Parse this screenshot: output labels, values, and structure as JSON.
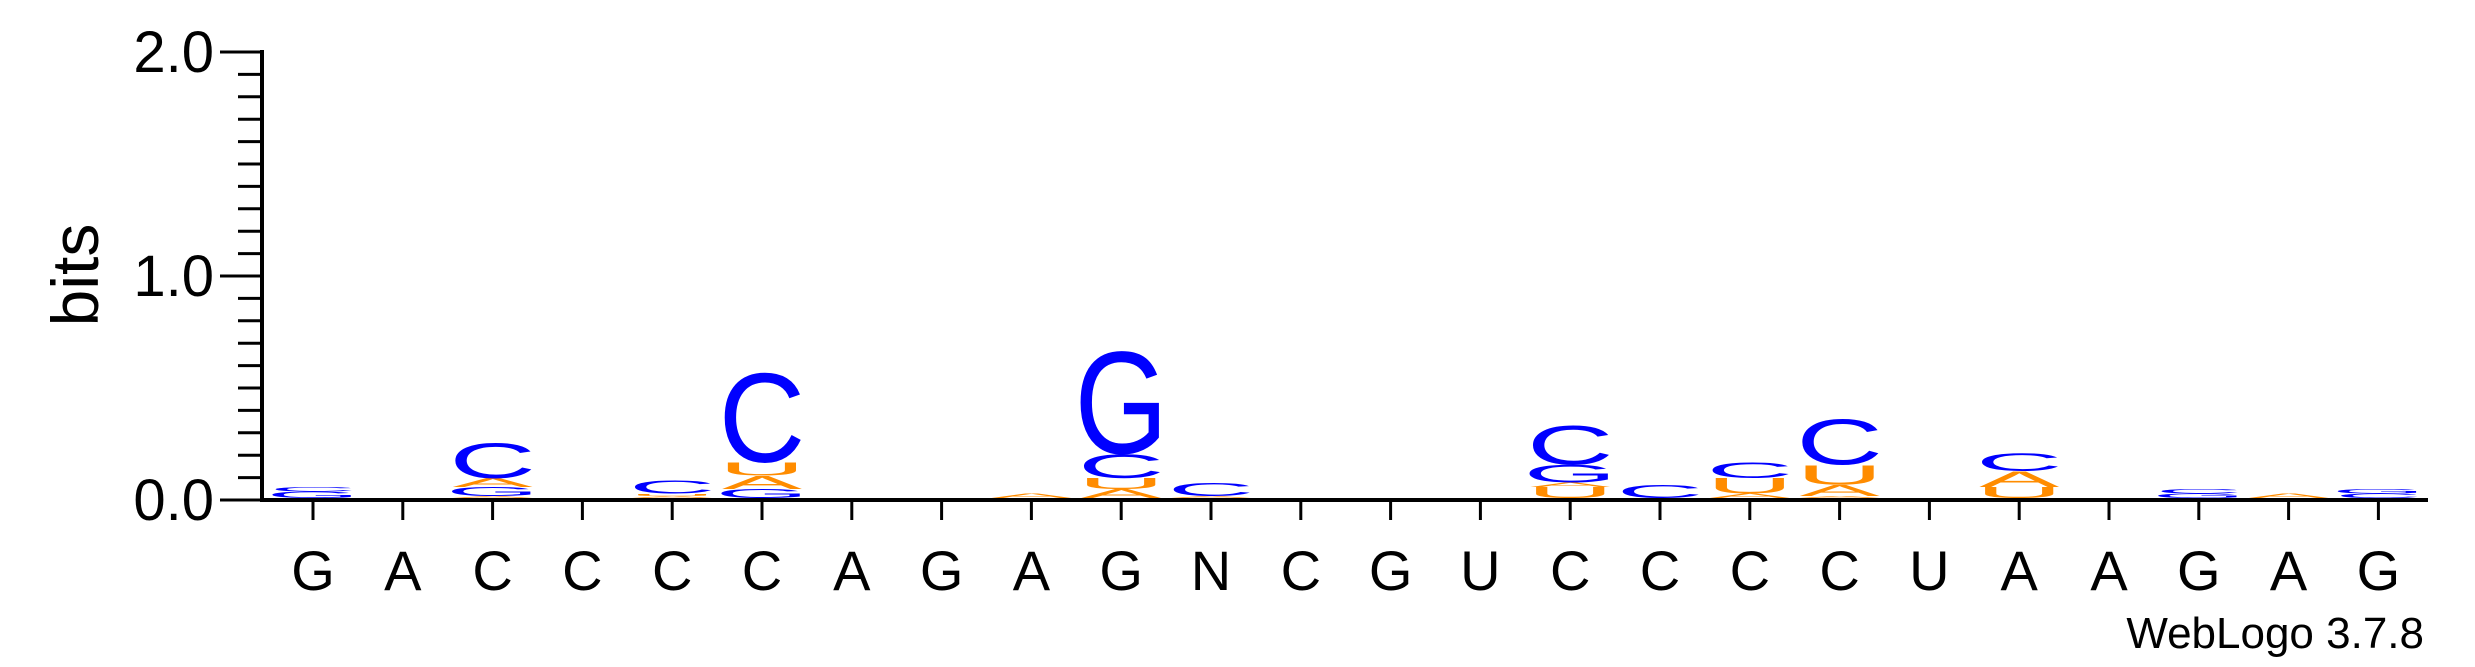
{
  "chart_data": {
    "type": "sequence-logo",
    "ylabel": "bits",
    "ylim": [
      0,
      2.0
    ],
    "yticks": [
      "0.0",
      "1.0",
      "2.0"
    ],
    "footer": "WebLogo 3.7.8",
    "colors": {
      "C": "#0000ff",
      "G": "#0000ff",
      "A": "#ff8c00",
      "U": "#ff8c00"
    },
    "positions": [
      {
        "label": "G",
        "stack": [
          [
            "G",
            0.03
          ],
          [
            "C",
            0.02
          ]
        ]
      },
      {
        "label": "A",
        "stack": []
      },
      {
        "label": "C",
        "stack": [
          [
            "A",
            0.01
          ],
          [
            "G",
            0.04
          ],
          [
            "A",
            0.04
          ],
          [
            "C",
            0.16
          ]
        ]
      },
      {
        "label": "C",
        "stack": []
      },
      {
        "label": "C",
        "stack": [
          [
            "A",
            0.01
          ],
          [
            "U",
            0.01
          ],
          [
            "C",
            0.06
          ]
        ]
      },
      {
        "label": "C",
        "stack": [
          [
            "G",
            0.04
          ],
          [
            "A",
            0.06
          ],
          [
            "U",
            0.06
          ],
          [
            "C",
            0.41
          ]
        ]
      },
      {
        "label": "A",
        "stack": []
      },
      {
        "label": "G",
        "stack": []
      },
      {
        "label": "A",
        "stack": [
          [
            "A",
            0.02
          ]
        ]
      },
      {
        "label": "G",
        "stack": [
          [
            "A",
            0.04
          ],
          [
            "U",
            0.05
          ],
          [
            "C",
            0.11
          ],
          [
            "G",
            0.47
          ]
        ]
      },
      {
        "label": "N",
        "stack": [
          [
            "A",
            0.01
          ],
          [
            "C",
            0.06
          ]
        ]
      },
      {
        "label": "C",
        "stack": []
      },
      {
        "label": "G",
        "stack": []
      },
      {
        "label": "U",
        "stack": []
      },
      {
        "label": "C",
        "stack": [
          [
            "U",
            0.05
          ],
          [
            "A",
            0.02
          ],
          [
            "G",
            0.08
          ],
          [
            "C",
            0.18
          ]
        ]
      },
      {
        "label": "C",
        "stack": [
          [
            "C",
            0.06
          ]
        ]
      },
      {
        "label": "C",
        "stack": [
          [
            "A",
            0.02
          ],
          [
            "U",
            0.07
          ],
          [
            "C",
            0.07
          ]
        ]
      },
      {
        "label": "C",
        "stack": [
          [
            "A",
            0.01
          ],
          [
            "A",
            0.05
          ],
          [
            "U",
            0.09
          ],
          [
            "C",
            0.21
          ]
        ]
      },
      {
        "label": "U",
        "stack": []
      },
      {
        "label": "A",
        "stack": [
          [
            "U",
            0.05
          ],
          [
            "A",
            0.07
          ],
          [
            "C",
            0.08
          ]
        ]
      },
      {
        "label": "A",
        "stack": []
      },
      {
        "label": "G",
        "stack": [
          [
            "G",
            0.02
          ],
          [
            "C",
            0.02
          ]
        ]
      },
      {
        "label": "A",
        "stack": [
          [
            "A",
            0.02
          ]
        ]
      },
      {
        "label": "G",
        "stack": [
          [
            "C",
            0.02
          ],
          [
            "G",
            0.02
          ]
        ]
      }
    ]
  }
}
